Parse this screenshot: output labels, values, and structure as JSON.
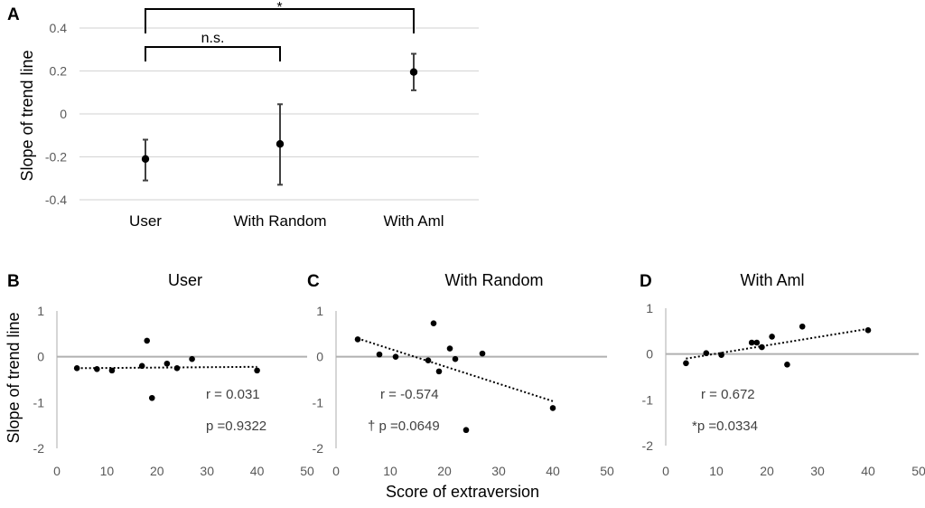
{
  "chart_data": [
    {
      "panel": "A",
      "type": "errorbar",
      "categories": [
        "User",
        "With Random",
        "With Aml"
      ],
      "values": [
        -0.21,
        -0.14,
        0.195
      ],
      "lower": [
        -0.31,
        -0.33,
        0.11
      ],
      "upper": [
        -0.12,
        0.045,
        0.28
      ],
      "ylabel": "Slope of trend line",
      "ylim": [
        -0.4,
        0.4
      ],
      "yticks": [
        "0.4",
        "0.2",
        "0",
        "-0.2",
        "-0.4"
      ],
      "yticks_values": [
        0.4,
        0.2,
        0,
        -0.2,
        -0.4
      ],
      "comparisons": [
        {
          "from": "User",
          "to": "With Aml",
          "label": "*"
        },
        {
          "from": "User",
          "to": "With Random",
          "label": "n.s."
        }
      ]
    },
    {
      "panel": "B",
      "type": "scatter",
      "title": "User",
      "x": [
        4,
        8,
        11,
        17,
        18,
        19,
        22,
        24,
        27,
        40
      ],
      "y": [
        -0.25,
        -0.27,
        -0.3,
        -0.2,
        0.35,
        -0.9,
        -0.15,
        -0.25,
        -0.05,
        -0.3
      ],
      "trend": [
        [
          4,
          -0.25
        ],
        [
          40,
          -0.22
        ]
      ],
      "xlim": [
        0,
        50
      ],
      "ylim": [
        -2,
        1
      ],
      "xticks": [
        "0",
        "10",
        "20",
        "30",
        "40",
        "50"
      ],
      "yticks": [
        "1",
        "0",
        "-1",
        "-2"
      ],
      "r_text": "r = 0.031",
      "p_text": "p =0.9322"
    },
    {
      "panel": "C",
      "type": "scatter",
      "title": "With Random",
      "x": [
        4,
        8,
        11,
        17,
        18,
        19,
        21,
        22,
        24,
        27,
        40
      ],
      "y": [
        0.38,
        0.05,
        0.0,
        -0.08,
        0.73,
        -0.32,
        0.18,
        -0.05,
        -1.6,
        0.07,
        -1.12
      ],
      "trend": [
        [
          4,
          0.4
        ],
        [
          40,
          -0.97
        ]
      ],
      "xlim": [
        0,
        50
      ],
      "ylim": [
        -2,
        1
      ],
      "xticks": [
        "0",
        "10",
        "20",
        "30",
        "40",
        "50"
      ],
      "yticks": [
        "1",
        "0",
        "-1",
        "-2"
      ],
      "r_text": "r = -0.574",
      "p_text": "† p =0.0649"
    },
    {
      "panel": "D",
      "type": "scatter",
      "title": "With Aml",
      "x": [
        4,
        8,
        11,
        17,
        18,
        19,
        21,
        24,
        27,
        40
      ],
      "y": [
        -0.2,
        0.02,
        -0.02,
        0.25,
        0.25,
        0.15,
        0.38,
        -0.23,
        0.6,
        0.52
      ],
      "trend": [
        [
          4,
          -0.1
        ],
        [
          40,
          0.55
        ]
      ],
      "xlim": [
        0,
        50
      ],
      "ylim": [
        -2,
        1
      ],
      "xticks": [
        "0",
        "10",
        "20",
        "30",
        "40",
        "50"
      ],
      "yticks": [
        "1",
        "0",
        "-1",
        "-2"
      ],
      "r_text": "r = 0.672",
      "p_text": "*p =0.0334"
    }
  ],
  "labels": {
    "panel_a": "A",
    "panel_b": "B",
    "panel_c": "C",
    "panel_d": "D",
    "bottom_ylabel": "Slope of trend line",
    "bottom_xlabel": "Score of extraversion"
  }
}
